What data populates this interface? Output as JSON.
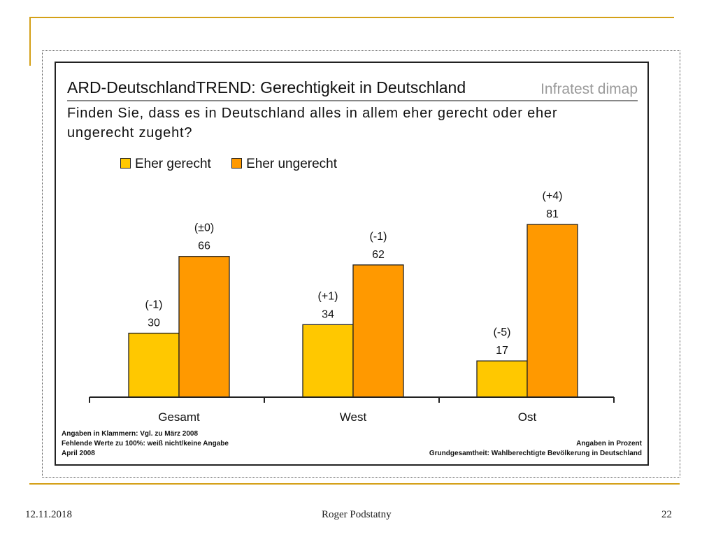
{
  "slide": {
    "footer_date": "12.11.2018",
    "footer_author": "Roger Podstatny",
    "footer_page": "22",
    "accent_color": "#d4a017"
  },
  "panel": {
    "title": "ARD-DeutschlandTREND: Gerechtigkeit in Deutschland",
    "brand": "Infratest dimap",
    "question": "Finden Sie, dass es in Deutschland alles in allem eher gerecht oder eher ungerecht zugeht?",
    "notes_left": [
      "Angaben in Klammern: Vgl. zu März 2008",
      "Fehlende Werte zu 100%: weiß nicht/keine Angabe",
      "April 2008"
    ],
    "notes_right": [
      "Angaben in Prozent",
      "Grundgesamtheit: Wahlberechtigte Bevölkerung in Deutschland"
    ]
  },
  "chart_data": {
    "type": "bar",
    "categories": [
      "Gesamt",
      "West",
      "Ost"
    ],
    "series": [
      {
        "name": "Eher gerecht",
        "color": "#FFC800",
        "values": [
          30,
          34,
          17
        ],
        "changes": [
          "(-1)",
          "(+1)",
          "(-5)"
        ]
      },
      {
        "name": "Eher ungerecht",
        "color": "#FF9900",
        "values": [
          66,
          62,
          81
        ],
        "changes": [
          "(±0)",
          "(-1)",
          "(+4)"
        ]
      }
    ],
    "ylim": [
      0,
      100
    ],
    "grid": false,
    "legend_position": "top-left"
  }
}
